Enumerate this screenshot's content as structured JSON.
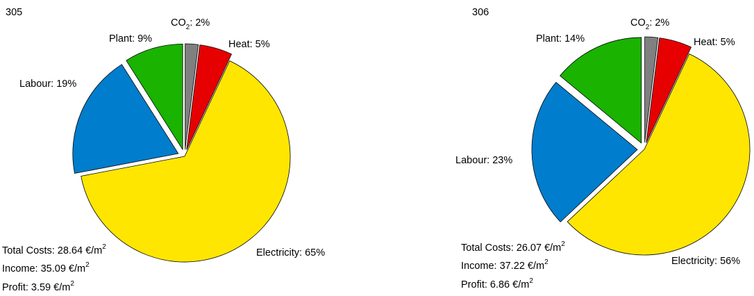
{
  "chart_data": [
    {
      "type": "pie",
      "id": "305",
      "labels": [
        "CO",
        "Heat",
        "Electricity",
        "Labour",
        "Plant"
      ],
      "values": [
        2,
        5,
        65,
        19,
        9
      ],
      "value_labels": [
        ": 2%",
        "Heat: 5%",
        "Electricity: 65%",
        "Labour: 19%",
        "Plant: 9%"
      ],
      "colors": [
        "#808080",
        "#e60000",
        "#ffe600",
        "#007dcc",
        "#19b300"
      ],
      "exploded": [
        true,
        true,
        false,
        true,
        true
      ],
      "co2_subscript": "2",
      "summary": {
        "total_costs": "Total Costs: 28.64 €/m",
        "income": "Income: 35.09 €/m",
        "profit": "Profit: 3.59 €/m",
        "unit_superscript": "2"
      }
    },
    {
      "type": "pie",
      "id": "306",
      "labels": [
        "CO",
        "Heat",
        "Electricity",
        "Labour",
        "Plant"
      ],
      "values": [
        2,
        5,
        56,
        23,
        14
      ],
      "value_labels": [
        ": 2%",
        "Heat: 5%",
        "Electricity: 56%",
        "Labour: 23%",
        "Plant: 14%"
      ],
      "colors": [
        "#808080",
        "#e60000",
        "#ffe600",
        "#007dcc",
        "#19b300"
      ],
      "exploded": [
        true,
        true,
        false,
        true,
        true
      ],
      "co2_subscript": "2",
      "summary": {
        "total_costs": "Total Costs: 26.07 €/m",
        "income": "Income: 37.22 €/m",
        "profit": "Profit: 6.86 €/m",
        "unit_superscript": "2"
      }
    }
  ]
}
